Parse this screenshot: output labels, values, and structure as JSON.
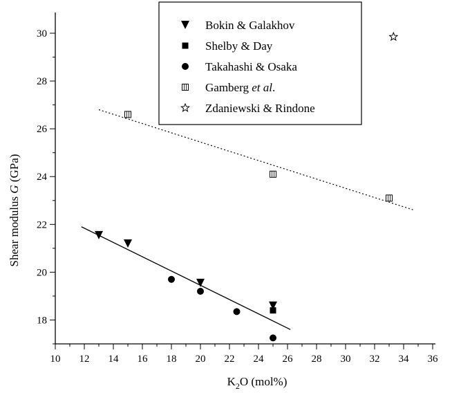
{
  "chart_data": {
    "type": "scatter",
    "xlabel": {
      "base": "K",
      "sub": "2",
      "rest": "O (mol%)"
    },
    "ylabel": {
      "pre": "Shear modulus ",
      "italic": "G",
      "post": " (GPa)"
    },
    "xlim": [
      10,
      36
    ],
    "ylim": [
      17,
      30
    ],
    "x_ticks": [
      10,
      12,
      14,
      16,
      18,
      20,
      22,
      24,
      26,
      28,
      30,
      32,
      34,
      36
    ],
    "y_ticks": [
      18,
      20,
      22,
      24,
      26,
      28,
      30
    ],
    "grid": false,
    "legend_position": "top-center",
    "series": [
      {
        "name": "Bokin & Galakhov",
        "marker": "triangle-down",
        "filled": true,
        "points": [
          [
            13,
            21.55
          ],
          [
            15,
            21.2
          ],
          [
            20,
            19.55
          ],
          [
            25,
            18.6
          ]
        ]
      },
      {
        "name": "Shelby & Day",
        "marker": "square",
        "filled": true,
        "points": [
          [
            25,
            18.4
          ]
        ]
      },
      {
        "name": "Takahashi & Osaka",
        "marker": "circle",
        "filled": true,
        "points": [
          [
            18,
            19.7
          ],
          [
            20,
            19.2
          ],
          [
            22.5,
            18.35
          ],
          [
            25,
            17.25
          ]
        ]
      },
      {
        "name": "Gamberg et al.",
        "name_parts": [
          "Gamberg ",
          "et al",
          "."
        ],
        "marker": "square-hatched",
        "filled": false,
        "points": [
          [
            15,
            26.6
          ],
          [
            25,
            24.1
          ],
          [
            33,
            23.1
          ]
        ]
      },
      {
        "name": "Zdaniewski & Rindone",
        "marker": "star",
        "filled": false,
        "points": [
          [
            33.3,
            29.85
          ]
        ]
      }
    ],
    "fit_lines": [
      {
        "style": "solid",
        "x": [
          11.8,
          26.2
        ],
        "y": [
          21.9,
          17.6
        ]
      },
      {
        "style": "dotted",
        "x": [
          13,
          34.7
        ],
        "y": [
          26.8,
          22.6
        ]
      }
    ]
  }
}
